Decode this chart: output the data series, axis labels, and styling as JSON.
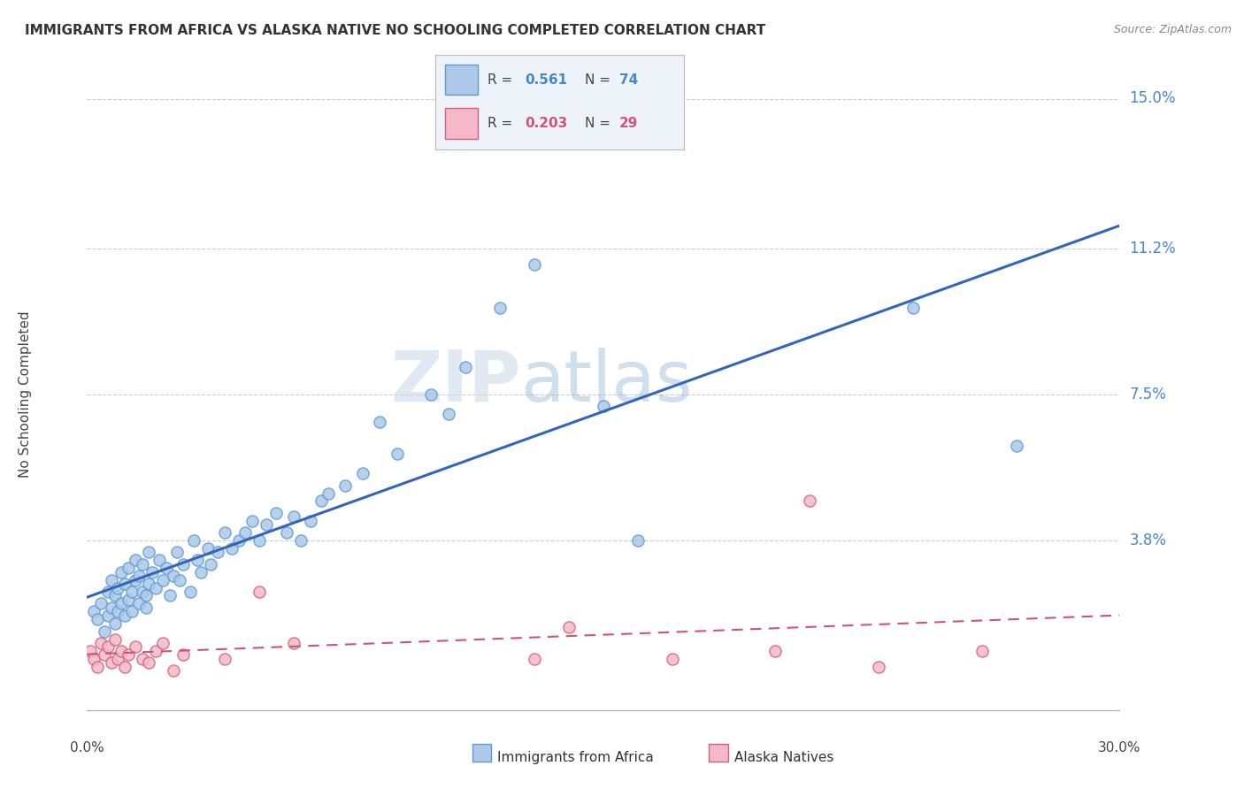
{
  "title": "IMMIGRANTS FROM AFRICA VS ALASKA NATIVE NO SCHOOLING COMPLETED CORRELATION CHART",
  "source": "Source: ZipAtlas.com",
  "ylabel": "No Schooling Completed",
  "xlim": [
    0.0,
    0.3
  ],
  "ylim": [
    -0.005,
    0.155
  ],
  "ytick_labels": [
    "15.0%",
    "11.2%",
    "7.5%",
    "3.8%"
  ],
  "ytick_values": [
    0.15,
    0.112,
    0.075,
    0.038
  ],
  "blue_color": "#adc8e8",
  "blue_edge_color": "#5b9bd5",
  "pink_color": "#f4b8c8",
  "pink_edge_color": "#d45f7a",
  "blue_line_color": "#3366bb",
  "pink_line_color": "#cc5577",
  "legend_R1": "0.561",
  "legend_N1": "74",
  "legend_R2": "0.203",
  "legend_N2": "29",
  "watermark_zip": "ZIP",
  "watermark_atlas": "atlas",
  "blue_scatter_x": [
    0.002,
    0.003,
    0.004,
    0.005,
    0.006,
    0.006,
    0.007,
    0.007,
    0.008,
    0.008,
    0.009,
    0.009,
    0.01,
    0.01,
    0.011,
    0.011,
    0.012,
    0.012,
    0.013,
    0.013,
    0.014,
    0.014,
    0.015,
    0.015,
    0.016,
    0.016,
    0.017,
    0.017,
    0.018,
    0.018,
    0.019,
    0.02,
    0.021,
    0.022,
    0.023,
    0.024,
    0.025,
    0.026,
    0.027,
    0.028,
    0.03,
    0.031,
    0.032,
    0.033,
    0.035,
    0.036,
    0.038,
    0.04,
    0.042,
    0.044,
    0.046,
    0.048,
    0.05,
    0.052,
    0.055,
    0.058,
    0.06,
    0.062,
    0.065,
    0.068,
    0.07,
    0.075,
    0.08,
    0.085,
    0.09,
    0.1,
    0.105,
    0.11,
    0.12,
    0.13,
    0.15,
    0.16,
    0.24,
    0.27
  ],
  "blue_scatter_y": [
    0.02,
    0.018,
    0.022,
    0.015,
    0.025,
    0.019,
    0.021,
    0.028,
    0.017,
    0.024,
    0.02,
    0.026,
    0.022,
    0.03,
    0.019,
    0.027,
    0.023,
    0.031,
    0.025,
    0.02,
    0.028,
    0.033,
    0.022,
    0.029,
    0.025,
    0.032,
    0.024,
    0.021,
    0.027,
    0.035,
    0.03,
    0.026,
    0.033,
    0.028,
    0.031,
    0.024,
    0.029,
    0.035,
    0.028,
    0.032,
    0.025,
    0.038,
    0.033,
    0.03,
    0.036,
    0.032,
    0.035,
    0.04,
    0.036,
    0.038,
    0.04,
    0.043,
    0.038,
    0.042,
    0.045,
    0.04,
    0.044,
    0.038,
    0.043,
    0.048,
    0.05,
    0.052,
    0.055,
    0.068,
    0.06,
    0.075,
    0.07,
    0.082,
    0.097,
    0.108,
    0.072,
    0.038,
    0.097,
    0.062
  ],
  "pink_scatter_x": [
    0.001,
    0.002,
    0.003,
    0.004,
    0.005,
    0.006,
    0.007,
    0.008,
    0.009,
    0.01,
    0.011,
    0.012,
    0.014,
    0.016,
    0.018,
    0.02,
    0.022,
    0.025,
    0.028,
    0.04,
    0.05,
    0.06,
    0.13,
    0.14,
    0.17,
    0.2,
    0.21,
    0.23,
    0.26
  ],
  "pink_scatter_y": [
    0.01,
    0.008,
    0.006,
    0.012,
    0.009,
    0.011,
    0.007,
    0.013,
    0.008,
    0.01,
    0.006,
    0.009,
    0.011,
    0.008,
    0.007,
    0.01,
    0.012,
    0.005,
    0.009,
    0.008,
    0.025,
    0.012,
    0.008,
    0.016,
    0.008,
    0.01,
    0.048,
    0.006,
    0.01
  ]
}
